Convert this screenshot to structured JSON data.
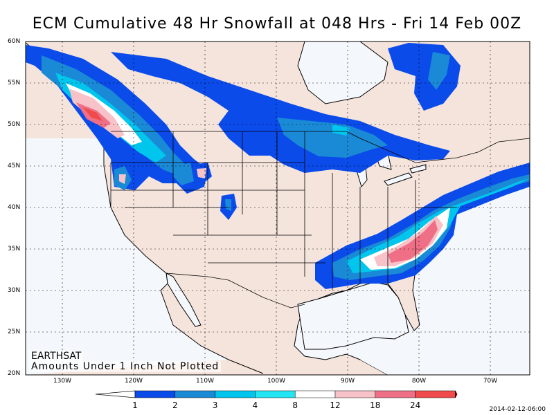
{
  "title": "ECM Cumulative 48 Hr Snowfall at 048 Hrs - Fri 14 Feb 00Z",
  "map": {
    "lat_labels": [
      "60N",
      "55N",
      "50N",
      "45N",
      "40N",
      "35N",
      "30N",
      "25N",
      "20N"
    ],
    "lon_labels": [
      "130W",
      "120W",
      "110W",
      "100W",
      "90W",
      "80W",
      "70W"
    ],
    "watermark": "EARTHSAT",
    "note": "Amounts Under 1 Inch Not Plotted",
    "colors": {
      "land": "#f5e4dc",
      "ocean": "#f4f8fc",
      "border": "#000000"
    }
  },
  "legend": {
    "labels": [
      "1",
      "2",
      "3",
      "4",
      "8",
      "12",
      "18",
      "24"
    ],
    "colors": [
      "#ffffff",
      "#0a4bea",
      "#1a8ad6",
      "#00c6ee",
      "#24e6f2",
      "#ffffff",
      "#f7c3c8",
      "#ef6f86",
      "#f04a4a",
      "#e80000"
    ]
  },
  "timestamp": "2014-02-12-06:00"
}
